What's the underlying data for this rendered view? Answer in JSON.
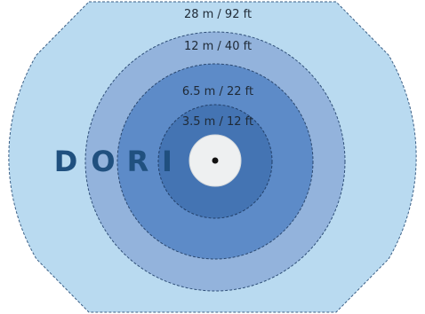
{
  "diagram": {
    "word": [
      "D",
      "O",
      "R",
      "I"
    ],
    "zones": [
      {
        "label": "28 m / 92 ft",
        "color": "#b9daf0"
      },
      {
        "label": "12 m / 40 ft",
        "color": "#93b3dc"
      },
      {
        "label": "6.5 m / 22 ft",
        "color": "#5d8bc8"
      },
      {
        "label": "3.5 m / 12 ft",
        "color": "#4474b3"
      }
    ],
    "boundary_style": "dashed",
    "center_device": {
      "color": "#eef0f1",
      "dot_color": "#111111"
    }
  }
}
